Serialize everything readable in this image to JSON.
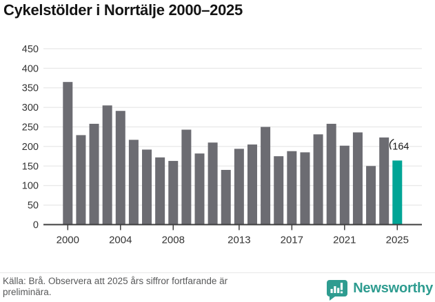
{
  "title": "Cykelstölder i Norrtälje 2000–2025",
  "chart_data": {
    "type": "bar",
    "title": "Cykelstölder i Norrtälje 2000–2025",
    "x": [
      2000,
      2001,
      2002,
      2003,
      2004,
      2005,
      2006,
      2007,
      2008,
      2009,
      2010,
      2011,
      2012,
      2013,
      2014,
      2015,
      2016,
      2017,
      2018,
      2019,
      2020,
      2021,
      2022,
      2023,
      2024,
      2025
    ],
    "values": [
      365,
      229,
      258,
      305,
      291,
      217,
      192,
      172,
      163,
      243,
      182,
      210,
      140,
      194,
      205,
      250,
      175,
      188,
      185,
      231,
      258,
      202,
      236,
      150,
      223,
      164
    ],
    "highlight": {
      "x": 2025,
      "value": 164,
      "label": "164"
    },
    "ylim": [
      0,
      450
    ],
    "yticks": [
      0,
      50,
      100,
      150,
      200,
      250,
      300,
      350,
      400,
      450
    ],
    "xticks": [
      "2000",
      "2004",
      "2008",
      "2013",
      "2017",
      "2021",
      "2025"
    ],
    "grid": true,
    "legend": false,
    "colors": {
      "bar": "#6c6c72",
      "highlight": "#00a596",
      "grid": "#e2e2e2",
      "axis": "#3d3d3d",
      "tick_label": "#333333",
      "annotation": "#1a1a1a"
    }
  },
  "footer": {
    "lines": [
      "Källa: Brå. Observera att 2025 års siffror fortfarande är",
      "preliminära."
    ],
    "brand": {
      "name": "Newsworthy",
      "color": "#2e9c90",
      "icon": "speech-bubble-bar-chart"
    }
  }
}
